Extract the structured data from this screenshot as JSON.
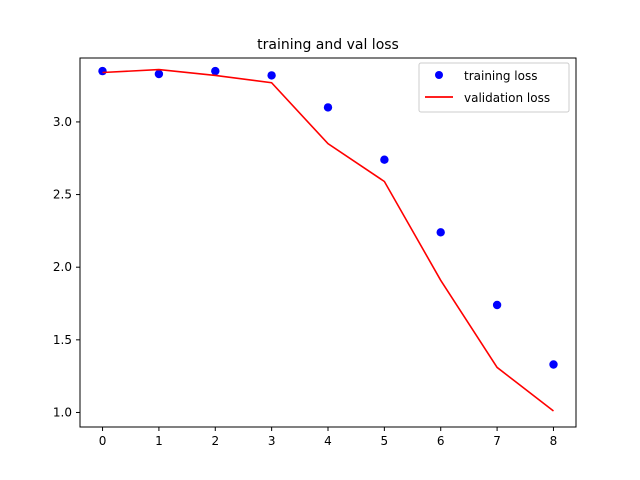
{
  "chart_data": {
    "type": "line",
    "title": "training and val loss",
    "xlabel": "",
    "ylabel": "",
    "xlim": [
      -0.4,
      8.4
    ],
    "ylim": [
      0.9,
      3.44
    ],
    "xticks": [
      0,
      1,
      2,
      3,
      4,
      5,
      6,
      7,
      8
    ],
    "xtick_labels": [
      "0",
      "1",
      "2",
      "3",
      "4",
      "5",
      "6",
      "7",
      "8"
    ],
    "yticks": [
      1.0,
      1.5,
      2.0,
      2.5,
      3.0
    ],
    "ytick_labels": [
      "1.0",
      "1.5",
      "2.0",
      "2.5",
      "3.0"
    ],
    "grid": false,
    "legend_position": "top-right",
    "series": [
      {
        "name": "training loss",
        "style": "scatter",
        "color": "#0000ff",
        "x": [
          0,
          1,
          2,
          3,
          4,
          5,
          6,
          7,
          8
        ],
        "y": [
          3.35,
          3.33,
          3.35,
          3.32,
          3.1,
          2.74,
          2.24,
          1.74,
          1.33
        ]
      },
      {
        "name": "validation loss",
        "style": "line",
        "color": "#ff0000",
        "x": [
          0,
          1,
          2,
          3,
          4,
          5,
          6,
          7,
          8
        ],
        "y": [
          3.34,
          3.36,
          3.32,
          3.27,
          2.85,
          2.59,
          1.91,
          1.31,
          1.01
        ]
      }
    ]
  }
}
